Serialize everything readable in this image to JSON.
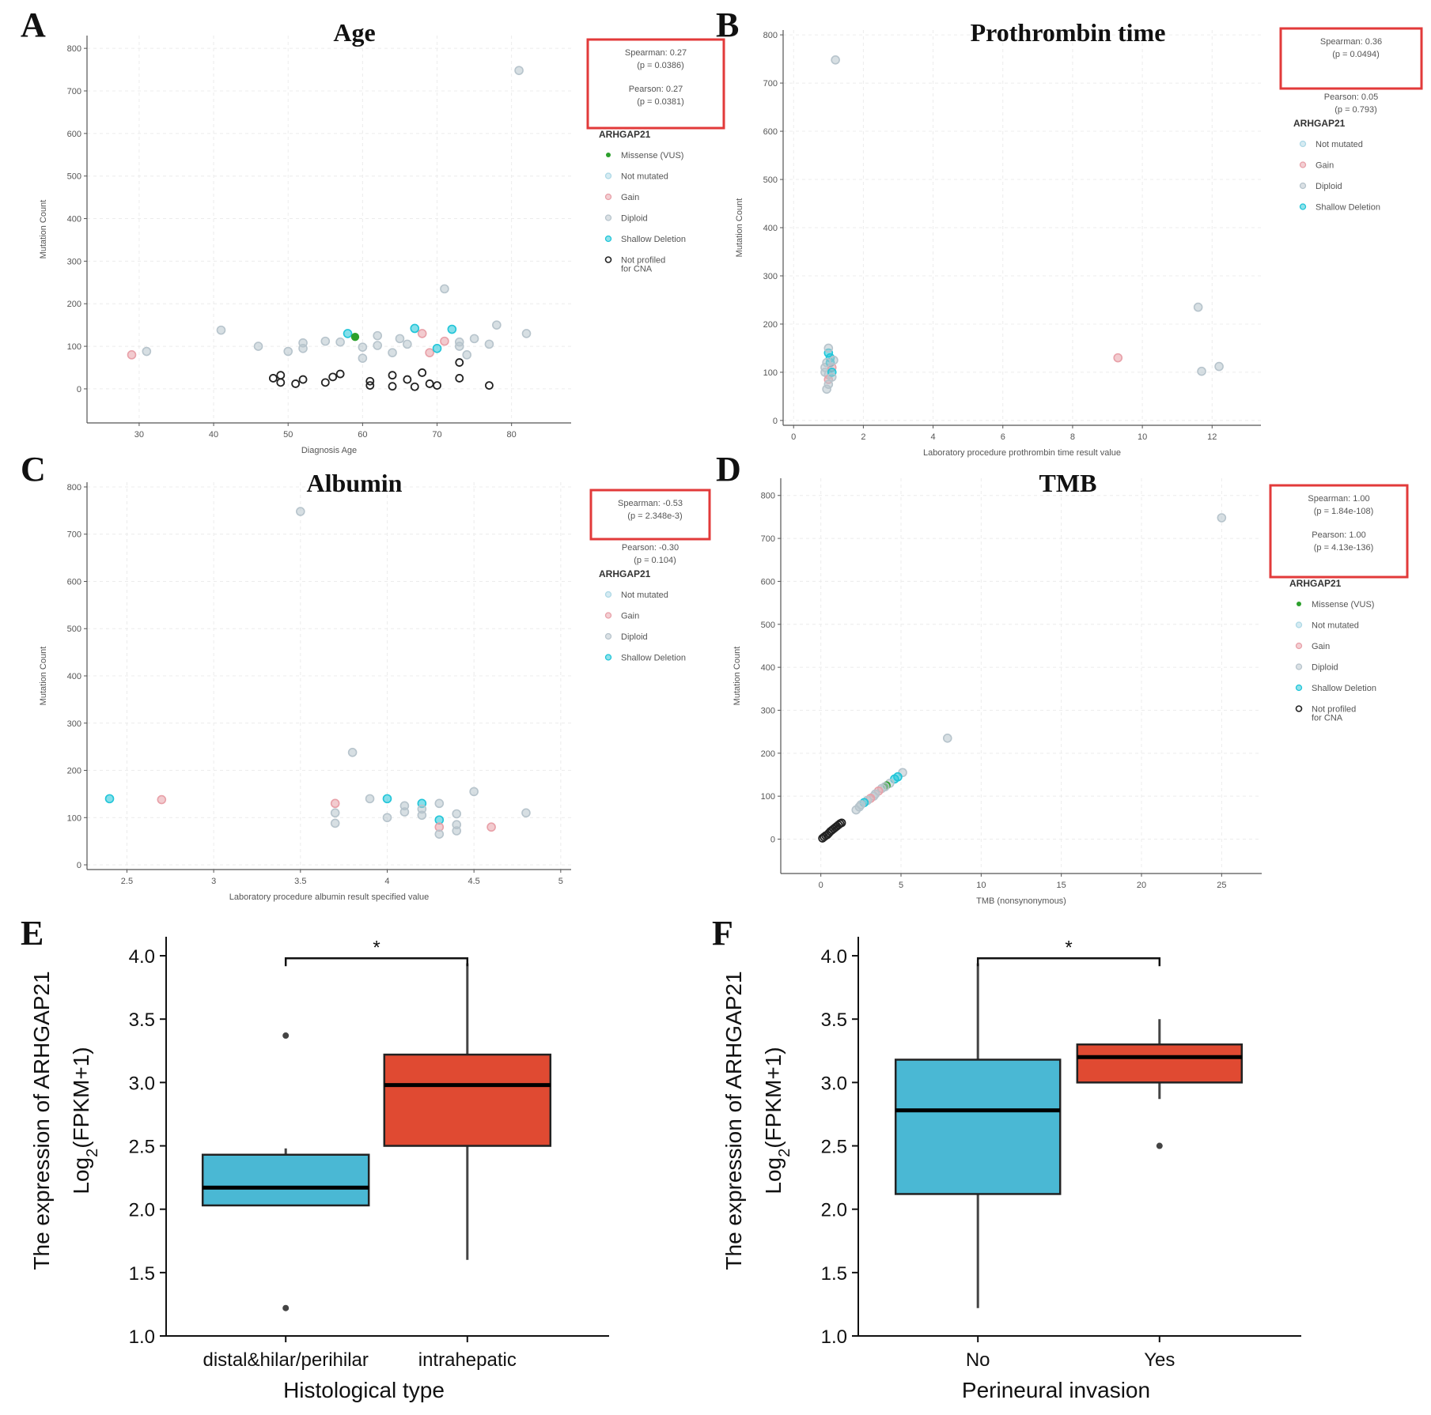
{
  "colors": {
    "missense": "#2ca02c",
    "not_mutated": "#add8e6",
    "gain": "#e8a0a8",
    "diploid": "#b7c4cc",
    "shallow_deletion": "#20c5d8",
    "not_profiled": "#222222",
    "box_blue": "#4ab8d4",
    "box_red": "#e04a32",
    "highlight": "#e23a3a"
  },
  "scatter_panels": [
    {
      "letter": "A",
      "title": "Age",
      "xlabel": "Diagnosis Age",
      "ylabel": "Mutation Count",
      "xlim": [
        23,
        88
      ],
      "ylim": [
        -80,
        830
      ],
      "xticks": [
        30,
        40,
        50,
        60,
        70,
        80
      ],
      "yticks": [
        0,
        100,
        200,
        300,
        400,
        500,
        600,
        700,
        800
      ],
      "stats": {
        "spearman": "Spearman: 0.27",
        "spearman_p": "(p = 0.0386)",
        "pearson": "Pearson: 0.27",
        "pearson_p": "(p = 0.0381)",
        "boxed": "both"
      },
      "legend_title": "ARHGAP21",
      "legend": [
        {
          "key": "missense",
          "label": "Missense (VUS)"
        },
        {
          "key": "not_mutated",
          "label": "Not mutated"
        },
        {
          "key": "gain",
          "label": "Gain"
        },
        {
          "key": "diploid",
          "label": "Diploid"
        },
        {
          "key": "shallow_deletion",
          "label": "Shallow Deletion"
        },
        {
          "key": "not_profiled",
          "label": "Not profiled",
          "label2": "for CNA"
        }
      ],
      "points": [
        [
          29,
          80,
          "gain"
        ],
        [
          31,
          88,
          "diploid"
        ],
        [
          41,
          138,
          "diploid"
        ],
        [
          46,
          100,
          "diploid"
        ],
        [
          50,
          88,
          "diploid"
        ],
        [
          52,
          95,
          "diploid"
        ],
        [
          52,
          108,
          "diploid"
        ],
        [
          55,
          112,
          "diploid"
        ],
        [
          57,
          110,
          "diploid"
        ],
        [
          58,
          130,
          "shallow_deletion"
        ],
        [
          59,
          122,
          "missense"
        ],
        [
          60,
          98,
          "diploid"
        ],
        [
          60,
          72,
          "diploid"
        ],
        [
          62,
          125,
          "diploid"
        ],
        [
          62,
          102,
          "diploid"
        ],
        [
          64,
          85,
          "diploid"
        ],
        [
          65,
          118,
          "diploid"
        ],
        [
          66,
          105,
          "diploid"
        ],
        [
          67,
          142,
          "shallow_deletion"
        ],
        [
          68,
          130,
          "gain"
        ],
        [
          69,
          85,
          "gain"
        ],
        [
          70,
          95,
          "shallow_deletion"
        ],
        [
          71,
          112,
          "gain"
        ],
        [
          71,
          235,
          "diploid"
        ],
        [
          72,
          140,
          "shallow_deletion"
        ],
        [
          73,
          100,
          "diploid"
        ],
        [
          73,
          110,
          "diploid"
        ],
        [
          74,
          80,
          "diploid"
        ],
        [
          75,
          118,
          "diploid"
        ],
        [
          77,
          105,
          "diploid"
        ],
        [
          78,
          150,
          "diploid"
        ],
        [
          81,
          748,
          "diploid"
        ],
        [
          82,
          130,
          "diploid"
        ],
        [
          48,
          25,
          "not_profiled"
        ],
        [
          49,
          15,
          "not_profiled"
        ],
        [
          49,
          32,
          "not_profiled"
        ],
        [
          51,
          12,
          "not_profiled"
        ],
        [
          52,
          22,
          "not_profiled"
        ],
        [
          55,
          15,
          "not_profiled"
        ],
        [
          56,
          28,
          "not_profiled"
        ],
        [
          57,
          35,
          "not_profiled"
        ],
        [
          61,
          8,
          "not_profiled"
        ],
        [
          61,
          18,
          "not_profiled"
        ],
        [
          64,
          6,
          "not_profiled"
        ],
        [
          64,
          32,
          "not_profiled"
        ],
        [
          66,
          22,
          "not_profiled"
        ],
        [
          67,
          5,
          "not_profiled"
        ],
        [
          68,
          38,
          "not_profiled"
        ],
        [
          69,
          12,
          "not_profiled"
        ],
        [
          70,
          8,
          "not_profiled"
        ],
        [
          73,
          25,
          "not_profiled"
        ],
        [
          73,
          62,
          "not_profiled"
        ],
        [
          77,
          8,
          "not_profiled"
        ]
      ]
    },
    {
      "letter": "B",
      "title": "Prothrombin time",
      "xlabel": "Laboratory procedure prothrombin time result value",
      "ylabel": "Mutation Count",
      "xlim": [
        -0.3,
        13.4
      ],
      "ylim": [
        -10,
        810
      ],
      "xticks": [
        0,
        2,
        4,
        6,
        8,
        10,
        12
      ],
      "yticks": [
        0,
        100,
        200,
        300,
        400,
        500,
        600,
        700,
        800
      ],
      "stats": {
        "spearman": "Spearman: 0.36",
        "spearman_p": "(p = 0.0494)",
        "pearson": "Pearson: 0.05",
        "pearson_p": "(p = 0.793)",
        "boxed": "spearman"
      },
      "legend_title": "ARHGAP21",
      "legend": [
        {
          "key": "not_mutated",
          "label": "Not mutated"
        },
        {
          "key": "gain",
          "label": "Gain"
        },
        {
          "key": "diploid",
          "label": "Diploid"
        },
        {
          "key": "shallow_deletion",
          "label": "Shallow Deletion"
        }
      ],
      "points": [
        [
          1.2,
          748,
          "diploid"
        ],
        [
          0.9,
          110,
          "diploid"
        ],
        [
          0.9,
          100,
          "diploid"
        ],
        [
          1.0,
          95,
          "diploid"
        ],
        [
          1.0,
          85,
          "gain"
        ],
        [
          1.0,
          75,
          "diploid"
        ],
        [
          0.95,
          65,
          "diploid"
        ],
        [
          1.05,
          130,
          "shallow_deletion"
        ],
        [
          1.0,
          140,
          "shallow_deletion"
        ],
        [
          1.05,
          120,
          "shallow_deletion"
        ],
        [
          1.1,
          110,
          "gain"
        ],
        [
          1.0,
          150,
          "diploid"
        ],
        [
          1.1,
          100,
          "shallow_deletion"
        ],
        [
          1.1,
          90,
          "diploid"
        ],
        [
          0.95,
          120,
          "diploid"
        ],
        [
          1.15,
          125,
          "diploid"
        ],
        [
          9.3,
          130,
          "gain"
        ],
        [
          11.6,
          235,
          "diploid"
        ],
        [
          11.7,
          102,
          "diploid"
        ],
        [
          12.2,
          112,
          "diploid"
        ]
      ]
    },
    {
      "letter": "C",
      "title": "Albumin",
      "xlabel": "Laboratory procedure albumin result specified value",
      "ylabel": "Mutation Count",
      "xlim": [
        2.27,
        5.06
      ],
      "ylim": [
        -10,
        810
      ],
      "xticks": [
        2.5,
        3,
        3.5,
        4,
        4.5,
        5
      ],
      "yticks": [
        0,
        100,
        200,
        300,
        400,
        500,
        600,
        700,
        800
      ],
      "stats": {
        "spearman": "Spearman: -0.53",
        "spearman_p": "(p = 2.348e-3)",
        "pearson": "Pearson: -0.30",
        "pearson_p": "(p = 0.104)",
        "boxed": "spearman"
      },
      "legend_title": "ARHGAP21",
      "legend": [
        {
          "key": "not_mutated",
          "label": "Not mutated"
        },
        {
          "key": "gain",
          "label": "Gain"
        },
        {
          "key": "diploid",
          "label": "Diploid"
        },
        {
          "key": "shallow_deletion",
          "label": "Shallow Deletion"
        }
      ],
      "points": [
        [
          2.4,
          140,
          "shallow_deletion"
        ],
        [
          2.7,
          138,
          "gain"
        ],
        [
          3.5,
          748,
          "diploid"
        ],
        [
          3.7,
          130,
          "gain"
        ],
        [
          3.7,
          110,
          "diploid"
        ],
        [
          3.7,
          88,
          "diploid"
        ],
        [
          3.8,
          238,
          "diploid"
        ],
        [
          3.9,
          140,
          "diploid"
        ],
        [
          4.0,
          140,
          "shallow_deletion"
        ],
        [
          4.0,
          100,
          "diploid"
        ],
        [
          4.1,
          125,
          "diploid"
        ],
        [
          4.1,
          112,
          "diploid"
        ],
        [
          4.2,
          130,
          "shallow_deletion"
        ],
        [
          4.2,
          118,
          "diploid"
        ],
        [
          4.2,
          105,
          "diploid"
        ],
        [
          4.3,
          130,
          "diploid"
        ],
        [
          4.3,
          95,
          "shallow_deletion"
        ],
        [
          4.3,
          80,
          "gain"
        ],
        [
          4.3,
          65,
          "diploid"
        ],
        [
          4.4,
          108,
          "diploid"
        ],
        [
          4.4,
          85,
          "diploid"
        ],
        [
          4.4,
          72,
          "diploid"
        ],
        [
          4.5,
          155,
          "diploid"
        ],
        [
          4.6,
          80,
          "gain"
        ],
        [
          4.8,
          110,
          "diploid"
        ]
      ]
    },
    {
      "letter": "D",
      "title": "TMB",
      "xlabel": "TMB (nonsynonymous)",
      "ylabel": "Mutation Count",
      "xlim": [
        -2.5,
        27.5
      ],
      "ylim": [
        -80,
        840
      ],
      "xticks": [
        0,
        5,
        10,
        15,
        20,
        25
      ],
      "yticks": [
        0,
        100,
        200,
        300,
        400,
        500,
        600,
        700,
        800
      ],
      "stats": {
        "spearman": "Spearman: 1.00",
        "spearman_p": "(p = 1.84e-108)",
        "pearson": "Pearson: 1.00",
        "pearson_p": "(p = 4.13e-136)",
        "boxed": "both"
      },
      "legend_title": "ARHGAP21",
      "legend": [
        {
          "key": "missense",
          "label": "Missense (VUS)"
        },
        {
          "key": "not_mutated",
          "label": "Not mutated"
        },
        {
          "key": "gain",
          "label": "Gain"
        },
        {
          "key": "diploid",
          "label": "Diploid"
        },
        {
          "key": "shallow_deletion",
          "label": "Shallow Deletion"
        },
        {
          "key": "not_profiled",
          "label": "Not profiled",
          "label2": "for CNA"
        }
      ],
      "points": [
        [
          25,
          748,
          "diploid"
        ],
        [
          7.9,
          235,
          "diploid"
        ],
        [
          5.1,
          155,
          "diploid"
        ],
        [
          4.8,
          145,
          "shallow_deletion"
        ],
        [
          4.6,
          140,
          "shallow_deletion"
        ],
        [
          4.3,
          130,
          "diploid"
        ],
        [
          4.1,
          125,
          "missense"
        ],
        [
          4.0,
          122,
          "diploid"
        ],
        [
          3.8,
          118,
          "diploid"
        ],
        [
          3.6,
          112,
          "gain"
        ],
        [
          3.4,
          105,
          "diploid"
        ],
        [
          3.3,
          100,
          "diploid"
        ],
        [
          3.1,
          95,
          "gain"
        ],
        [
          2.9,
          90,
          "diploid"
        ],
        [
          2.7,
          85,
          "shallow_deletion"
        ],
        [
          2.5,
          80,
          "diploid"
        ],
        [
          2.4,
          75,
          "diploid"
        ],
        [
          2.2,
          68,
          "diploid"
        ],
        [
          0.1,
          2,
          "not_profiled"
        ],
        [
          0.2,
          5,
          "not_profiled"
        ],
        [
          0.3,
          8,
          "not_profiled"
        ],
        [
          0.4,
          10,
          "not_profiled"
        ],
        [
          0.5,
          14,
          "not_profiled"
        ],
        [
          0.6,
          18,
          "not_profiled"
        ],
        [
          0.7,
          21,
          "not_profiled"
        ],
        [
          0.8,
          24,
          "not_profiled"
        ],
        [
          0.9,
          27,
          "not_profiled"
        ],
        [
          1.0,
          30,
          "not_profiled"
        ],
        [
          1.1,
          33,
          "not_profiled"
        ],
        [
          1.2,
          36,
          "not_profiled"
        ],
        [
          1.3,
          38,
          "not_profiled"
        ]
      ]
    }
  ],
  "box_panels": [
    {
      "letter": "E",
      "xlabel": "Histological type",
      "ylabel_line1": "The expression of ARHGAP21",
      "ylabel_line2": "Log",
      "ylabel_sub": "2",
      "ylabel_tail": "(FPKM+1)",
      "ylim": [
        1.0,
        4.15
      ],
      "yticks": [
        "1.0",
        "1.5",
        "2.0",
        "2.5",
        "3.0",
        "3.5",
        "4.0"
      ],
      "significance": "*",
      "groups": [
        {
          "name": "distal&hilar/perihilar",
          "q1": 2.03,
          "median": 2.17,
          "q3": 2.43,
          "whisker_low": 2.03,
          "whisker_high": 2.48,
          "outliers": [
            3.37,
            1.22
          ],
          "color_key": "box_blue"
        },
        {
          "name": "intrahepatic",
          "q1": 2.5,
          "median": 2.98,
          "q3": 3.22,
          "whisker_low": 1.6,
          "whisker_high": 3.94,
          "outliers": [],
          "color_key": "box_red"
        }
      ]
    },
    {
      "letter": "F",
      "xlabel": "Perineural invasion",
      "ylabel_line1": "The expression of ARHGAP21",
      "ylabel_line2": "Log",
      "ylabel_sub": "2",
      "ylabel_tail": "(FPKM+1)",
      "ylim": [
        1.0,
        4.15
      ],
      "yticks": [
        "1.0",
        "1.5",
        "2.0",
        "2.5",
        "3.0",
        "3.5",
        "4.0"
      ],
      "significance": "*",
      "groups": [
        {
          "name": "No",
          "q1": 2.12,
          "median": 2.78,
          "q3": 3.18,
          "whisker_low": 1.22,
          "whisker_high": 3.94,
          "outliers": [],
          "color_key": "box_blue"
        },
        {
          "name": "Yes",
          "q1": 3.0,
          "median": 3.2,
          "q3": 3.3,
          "whisker_low": 2.87,
          "whisker_high": 3.5,
          "outliers": [
            2.5
          ],
          "color_key": "box_red"
        }
      ]
    }
  ]
}
